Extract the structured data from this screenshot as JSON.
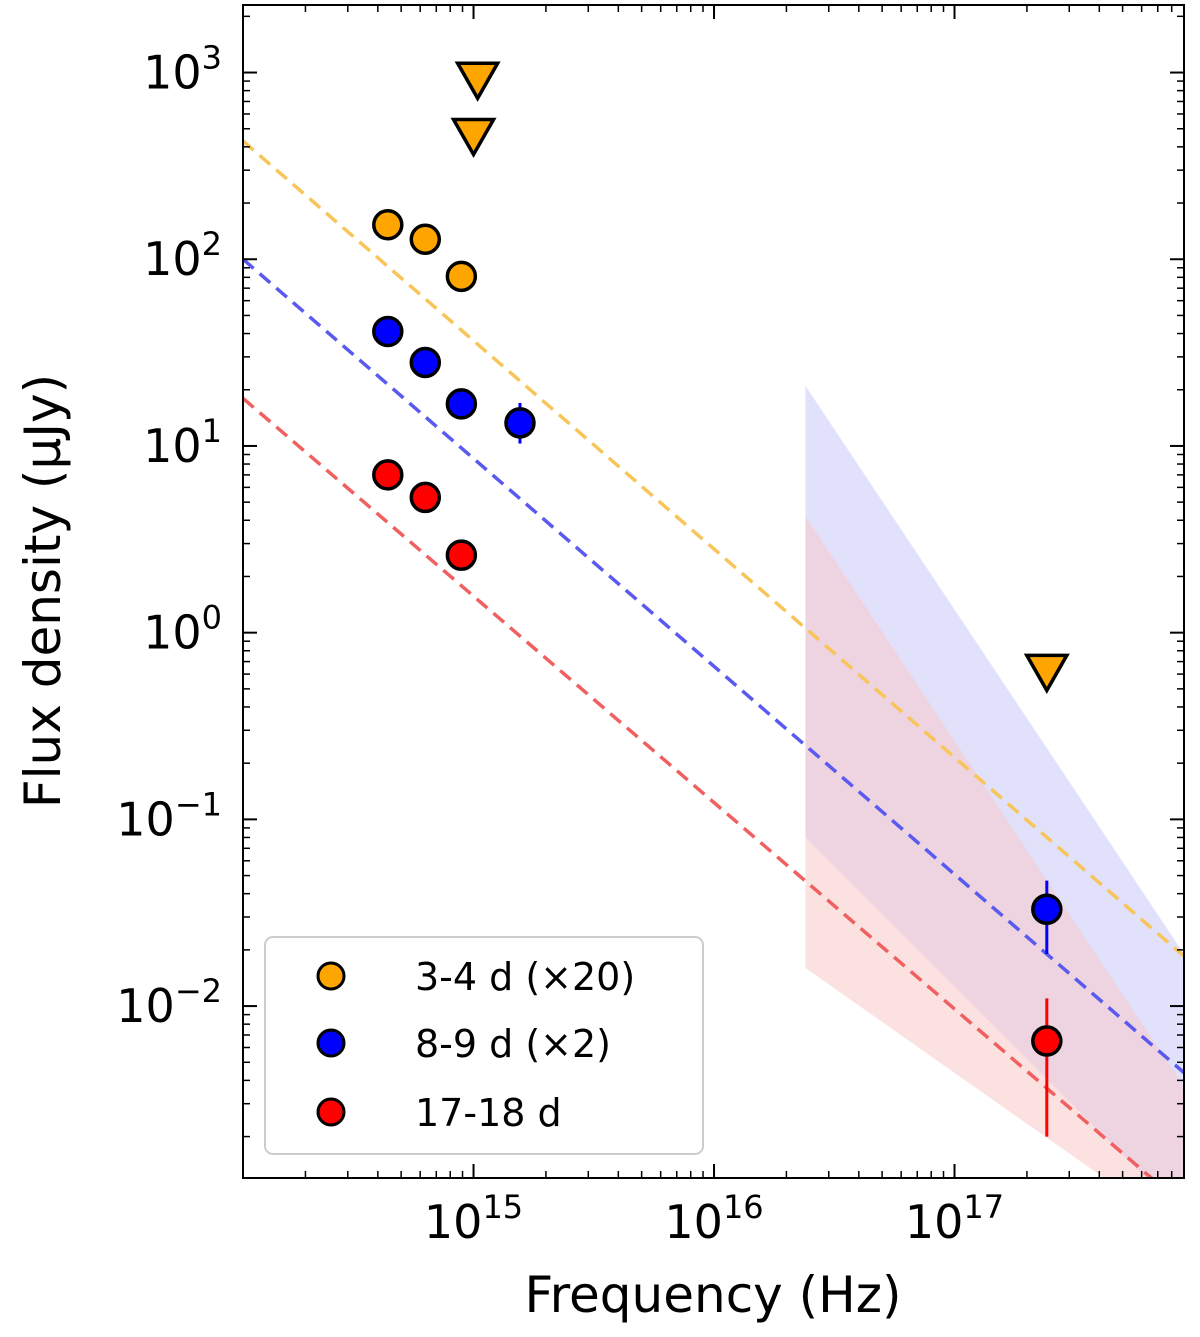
{
  "chart_data": {
    "type": "scatter",
    "xscale": "log",
    "yscale": "log",
    "xlim": [
      110000000000000,
      900000000000000000
    ],
    "ylim": [
      0.0012,
      2300
    ],
    "xlabel": "Frequency (Hz)",
    "ylabel": "Flux density (μJy)",
    "x_ticks": [
      {
        "value": 1000000000000000.0,
        "base": "10",
        "exp": "15"
      },
      {
        "value": 1e+16,
        "base": "10",
        "exp": "16"
      },
      {
        "value": 1e+17,
        "base": "10",
        "exp": "17"
      }
    ],
    "y_ticks": [
      {
        "value": 0.01,
        "base": "10",
        "exp": "−2"
      },
      {
        "value": 0.1,
        "base": "10",
        "exp": "−1"
      },
      {
        "value": 1,
        "base": "10",
        "exp": "0"
      },
      {
        "value": 10,
        "base": "10",
        "exp": "1"
      },
      {
        "value": 100,
        "base": "10",
        "exp": "2"
      },
      {
        "value": 1000,
        "base": "10",
        "exp": "3"
      }
    ],
    "series": [
      {
        "name": "3-4 d (×20)",
        "color": "#FFA500",
        "points": [
          {
            "x": 440000000000000.0,
            "y": 153
          },
          {
            "x": 630000000000000.0,
            "y": 128
          },
          {
            "x": 890000000000000.0,
            "y": 81
          }
        ],
        "upper_limits": [
          {
            "x": 1040000000000000.0,
            "y": 920
          },
          {
            "x": 1000000000000000.0,
            "y": 460
          },
          {
            "x": 2.42e+17,
            "y": 0.62
          }
        ],
        "model_line": {
          "x0": 110000000000000.0,
          "y0": 430,
          "x1": 9e+17,
          "y1": 0.0185,
          "color": "#F8C55A"
        }
      },
      {
        "name": "8-9 d (×2)",
        "color": "#0000FF",
        "points": [
          {
            "x": 440000000000000.0,
            "y": 41,
            "yerr": null
          },
          {
            "x": 630000000000000.0,
            "y": 28,
            "yerr": null
          },
          {
            "x": 890000000000000.0,
            "y": 16.8,
            "yerr": null
          },
          {
            "x": 1560000000000000.0,
            "y": 13.3,
            "yerr": [
              10.3,
              17
            ]
          },
          {
            "x": 2.42e+17,
            "y": 0.033,
            "yerr": [
              0.019,
              0.047
            ]
          }
        ],
        "model_line": {
          "x0": 110000000000000.0,
          "y0": 100,
          "x1": 9e+17,
          "y1": 0.0044,
          "color": "#5A5AF0"
        },
        "xray_band": {
          "x0": 2.4e+16,
          "upper": [
            21,
            0.019
          ],
          "lower": [
            0.08,
            0.00075
          ],
          "color": "#C8C8FA"
        }
      },
      {
        "name": "17-18 d",
        "color": "#FF0000",
        "points": [
          {
            "x": 440000000000000.0,
            "y": 7.0,
            "yerr": null
          },
          {
            "x": 630000000000000.0,
            "y": 5.3,
            "yerr": null
          },
          {
            "x": 890000000000000.0,
            "y": 2.6,
            "yerr": null
          },
          {
            "x": 2.42e+17,
            "y": 0.0065,
            "yerr": [
              0.002,
              0.011
            ]
          }
        ],
        "model_line": {
          "x0": 110000000000000.0,
          "y0": 18,
          "x1": 9e+17,
          "y1": 0.00085,
          "color": "#F06060"
        },
        "xray_band": {
          "x0": 2.4e+16,
          "upper": [
            4.2,
            0.0037
          ],
          "lower": [
            0.016,
            0.0006
          ],
          "color": "#FAC8C8"
        }
      }
    ],
    "legend": {
      "position": "lower-left",
      "entries": [
        "3-4 d (×20)",
        "8-9 d (×2)",
        "17-18 d"
      ]
    }
  }
}
